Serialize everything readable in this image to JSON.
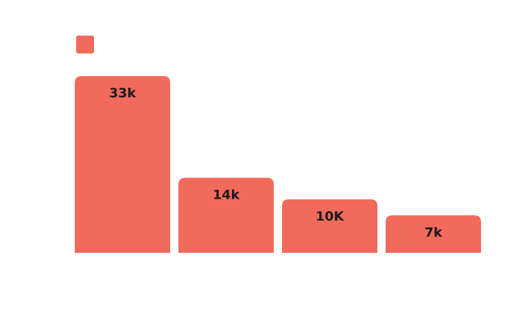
{
  "chart_data": {
    "type": "bar",
    "categories": [
      "",
      "",
      "",
      ""
    ],
    "values": [
      33000,
      14000,
      10000,
      7000
    ],
    "data_labels": [
      "33k",
      "14k",
      "10K",
      "7k"
    ],
    "ylim": [
      0,
      33000
    ],
    "grid": false,
    "legend": {
      "position": "top-left",
      "entries": [
        {
          "name": "",
          "color": "#f26a5c"
        }
      ]
    },
    "colors": {
      "bar": "#f26a5c",
      "label": "#1a1a1a",
      "background": "#ffffff"
    }
  }
}
